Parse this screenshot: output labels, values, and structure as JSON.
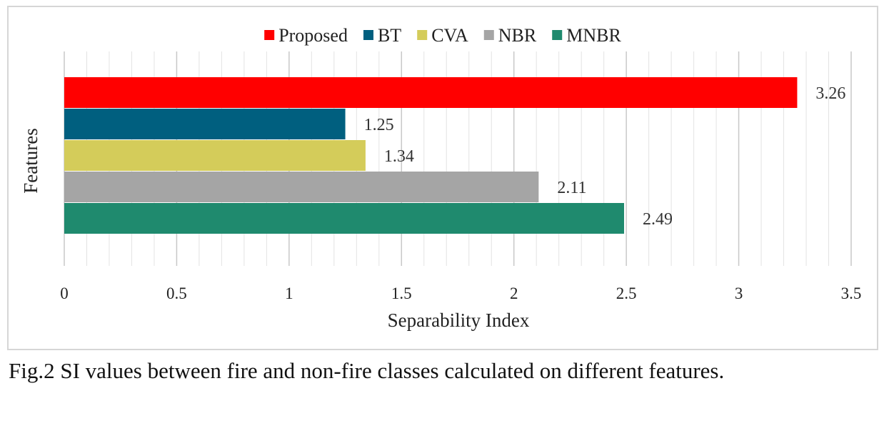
{
  "chart_data": {
    "type": "bar",
    "orientation": "horizontal",
    "xlabel": "Separability Index",
    "ylabel": "Features",
    "xlim": [
      0,
      3.5
    ],
    "xticks": [
      0,
      0.5,
      1,
      1.5,
      2,
      2.5,
      3,
      3.5
    ],
    "xtick_labels": [
      "0",
      "0.5",
      "1",
      "1.5",
      "2",
      "2.5",
      "3",
      "3.5"
    ],
    "legend_position": "top",
    "grid": true,
    "series": [
      {
        "name": "Proposed",
        "value": 3.26,
        "label": "3.26",
        "color": "#ff0000"
      },
      {
        "name": "BT",
        "value": 1.25,
        "label": "1.25",
        "color": "#005f7f"
      },
      {
        "name": "CVA",
        "value": 1.34,
        "label": "1.34",
        "color": "#d4cc5a"
      },
      {
        "name": "NBR",
        "value": 2.11,
        "label": "2.11",
        "color": "#a5a5a5"
      },
      {
        "name": "MNBR",
        "value": 2.49,
        "label": "2.49",
        "color": "#1f8a6e"
      }
    ]
  },
  "caption": "Fig.2 SI values between fire and non-fire classes calculated on different features."
}
